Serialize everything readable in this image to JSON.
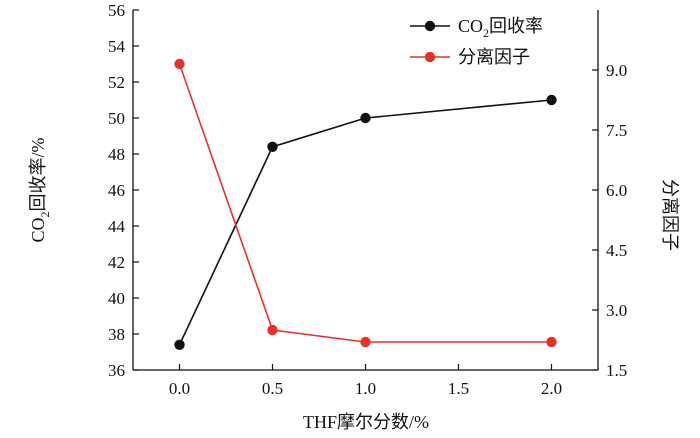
{
  "chart_data": {
    "type": "line",
    "x": [
      0.0,
      0.5,
      1.0,
      2.0
    ],
    "xlabel": "THF摩尔分数/%",
    "xlim": [
      -0.25,
      2.25
    ],
    "xticks": [
      "0.0",
      "0.5",
      "1.0",
      "1.5",
      "2.0"
    ],
    "ylabel": "CO2回收率/%",
    "ylim": [
      36,
      56
    ],
    "yticks": [
      "36",
      "38",
      "40",
      "42",
      "44",
      "46",
      "48",
      "50",
      "52",
      "54",
      "56"
    ],
    "y2label": "分离因子",
    "y2lim": [
      1.5,
      10.5
    ],
    "y2ticks": [
      "1.5",
      "3.0",
      "4.5",
      "6.0",
      "7.5",
      "9.0"
    ],
    "legend_position": "top-right",
    "grid": false,
    "series": [
      {
        "name": "CO2回收率",
        "axis": "left",
        "color": "#111111",
        "values": [
          37.4,
          48.4,
          50.0,
          51.0
        ]
      },
      {
        "name": "分离因子",
        "axis": "right",
        "color": "#e8312a",
        "values": [
          9.15,
          2.5,
          2.2,
          2.2
        ]
      }
    ]
  }
}
